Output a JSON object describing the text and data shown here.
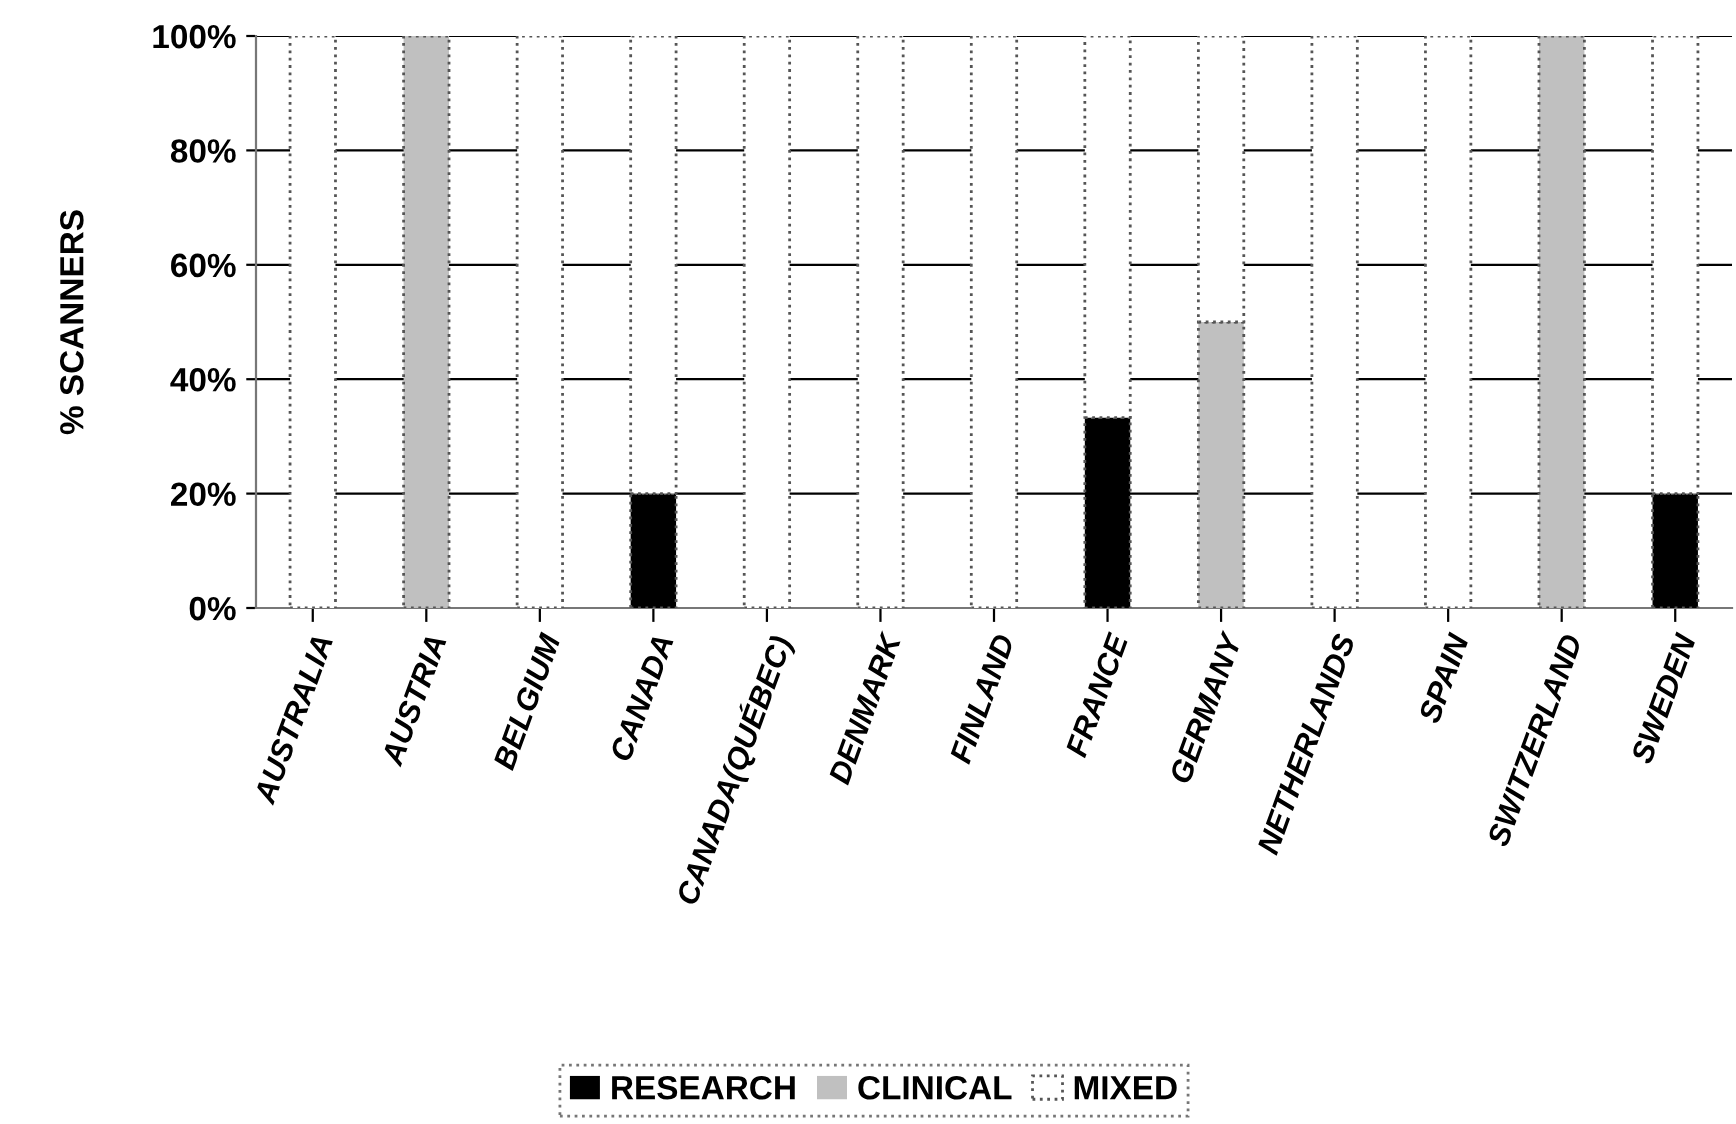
{
  "chart_data": {
    "type": "bar",
    "stacked": true,
    "ylabel": "% SCANNERS",
    "categories": [
      "AUSTRALIA",
      "AUSTRIA",
      "BELGIUM",
      "CANADA",
      "CANADA(QUÉBEC)",
      "DENMARK",
      "FINLAND",
      "FRANCE",
      "GERMANY",
      "NETHERLANDS",
      "SPAIN",
      "SWITZERLAND",
      "SWEDEN"
    ],
    "series": [
      {
        "name": "RESEARCH",
        "color": "#000000",
        "values": [
          0,
          0,
          0,
          20,
          0,
          0,
          0,
          33.3,
          0,
          0,
          0,
          0,
          20
        ]
      },
      {
        "name": "CLINICAL",
        "color": "#c0c0c0",
        "values": [
          0,
          100,
          0,
          0,
          0,
          0,
          0,
          0,
          50,
          0,
          0,
          100,
          0
        ]
      },
      {
        "name": "MIXED",
        "color": "#ffffff",
        "values": [
          100,
          0,
          100,
          80,
          100,
          100,
          100,
          66.7,
          50,
          100,
          100,
          0,
          80
        ]
      }
    ],
    "ylim": [
      0,
      100
    ],
    "yticks": [
      {
        "value": 0,
        "label": "0%"
      },
      {
        "value": 20,
        "label": "20%"
      },
      {
        "value": 40,
        "label": "40%"
      },
      {
        "value": 60,
        "label": "60%"
      },
      {
        "value": 80,
        "label": "80%"
      },
      {
        "value": 100,
        "label": "100%"
      }
    ],
    "grid": "y",
    "legend": "bottom"
  }
}
